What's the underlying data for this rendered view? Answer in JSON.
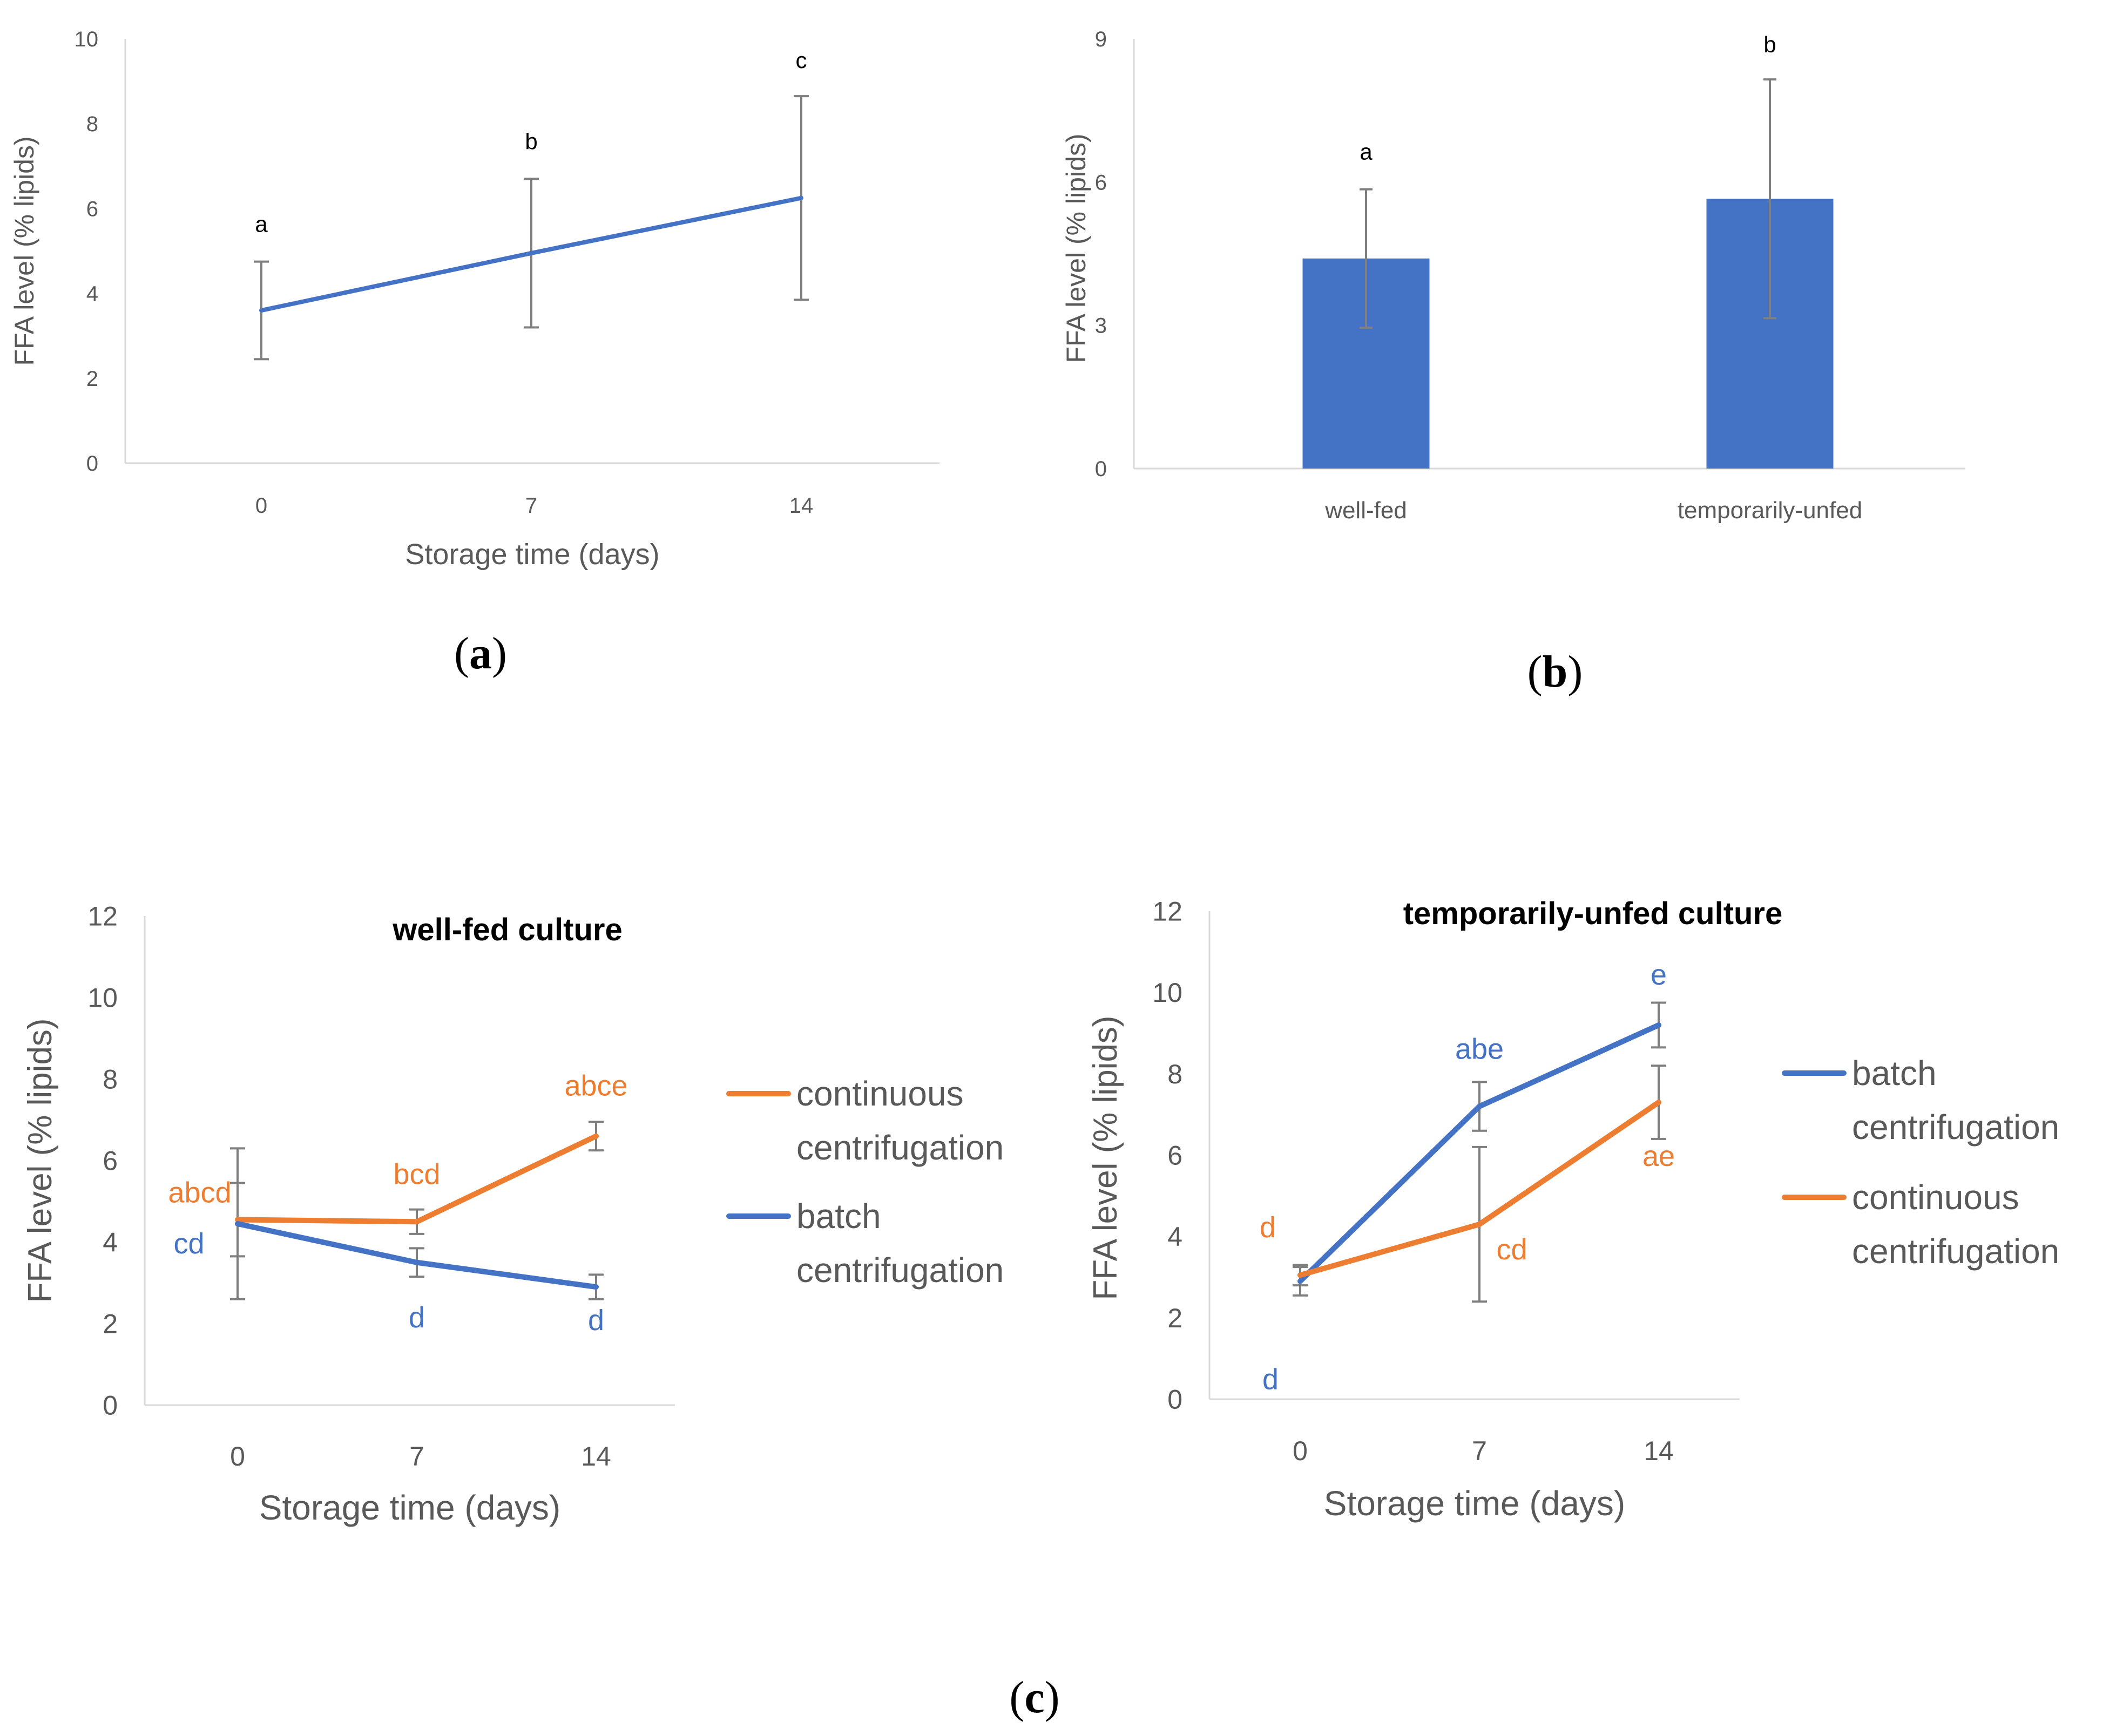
{
  "colors": {
    "blue": "#4472c4",
    "orange": "#ed7d31",
    "axis": "#d9d9d9",
    "text": "#595959",
    "error": "#7f7f7f"
  },
  "panels": {
    "a": "a",
    "b": "b",
    "c": "c"
  },
  "chart_data": [
    {
      "id": "a",
      "type": "line",
      "title": "",
      "xlabel": "Storage time (days)",
      "ylabel": "FFA level (% lipids)",
      "categories": [
        "0",
        "7",
        "14"
      ],
      "ylim": [
        0,
        10
      ],
      "yticks": [
        0,
        2,
        4,
        6,
        8,
        10
      ],
      "series": [
        {
          "name": "FFA",
          "color": "#4472c4",
          "values": [
            3.6,
            4.95,
            6.25
          ],
          "errors": [
            1.15,
            1.75,
            2.4
          ],
          "labels": [
            "a",
            "b",
            "c"
          ]
        }
      ],
      "legend": "none"
    },
    {
      "id": "b",
      "type": "bar",
      "title": "",
      "xlabel": "",
      "ylabel": "FFA level (% lipids)",
      "categories": [
        "well-fed",
        "temporarily-unfed"
      ],
      "ylim": [
        0,
        9
      ],
      "yticks": [
        0,
        3,
        6,
        9
      ],
      "series": [
        {
          "name": "FFA",
          "color": "#4472c4",
          "values": [
            4.4,
            5.65
          ],
          "errors": [
            1.45,
            2.5
          ],
          "labels": [
            "a",
            "b"
          ]
        }
      ],
      "legend": "none"
    },
    {
      "id": "c1",
      "type": "line",
      "title": "well-fed culture",
      "xlabel": "Storage time (days)",
      "ylabel": "FFA level (% lipids)",
      "categories": [
        "0",
        "7",
        "14"
      ],
      "ylim": [
        0,
        12
      ],
      "yticks": [
        0,
        2,
        4,
        6,
        8,
        10,
        12
      ],
      "series": [
        {
          "name": "continuous centrifugation",
          "legend_lines": [
            "continuous",
            "centrifugation"
          ],
          "color": "#ed7d31",
          "values": [
            4.55,
            4.5,
            6.6
          ],
          "errors": [
            0.9,
            0.3,
            0.35
          ],
          "labels": [
            "abcd",
            "bcd",
            "abce"
          ]
        },
        {
          "name": "batch centrifugation",
          "legend_lines": [
            "batch",
            "centrifugation"
          ],
          "color": "#4472c4",
          "values": [
            4.45,
            3.5,
            2.9
          ],
          "errors": [
            1.85,
            0.35,
            0.3
          ],
          "labels": [
            "cd",
            "d",
            "d"
          ]
        }
      ],
      "legend": "right"
    },
    {
      "id": "c2",
      "type": "line",
      "title": "temporarily-unfed culture",
      "xlabel": "Storage time (days)",
      "ylabel": "FFA level (% lipids)",
      "categories": [
        "0",
        "7",
        "14"
      ],
      "ylim": [
        0,
        12
      ],
      "yticks": [
        0,
        2,
        4,
        6,
        8,
        10,
        12
      ],
      "series": [
        {
          "name": "batch centrifugation",
          "legend_lines": [
            "batch",
            "centrifugation"
          ],
          "color": "#4472c4",
          "values": [
            2.9,
            7.2,
            9.2
          ],
          "errors": [
            0.35,
            0.6,
            0.55
          ],
          "labels": [
            "d",
            "abe",
            "e"
          ]
        },
        {
          "name": "continuous centrifugation",
          "legend_lines": [
            "continuous",
            "centrifugation"
          ],
          "color": "#ed7d31",
          "values": [
            3.05,
            4.3,
            7.3
          ],
          "errors": [
            0.25,
            1.9,
            0.9
          ],
          "labels": [
            "d",
            "cd",
            "ae"
          ]
        }
      ],
      "legend": "right"
    }
  ]
}
